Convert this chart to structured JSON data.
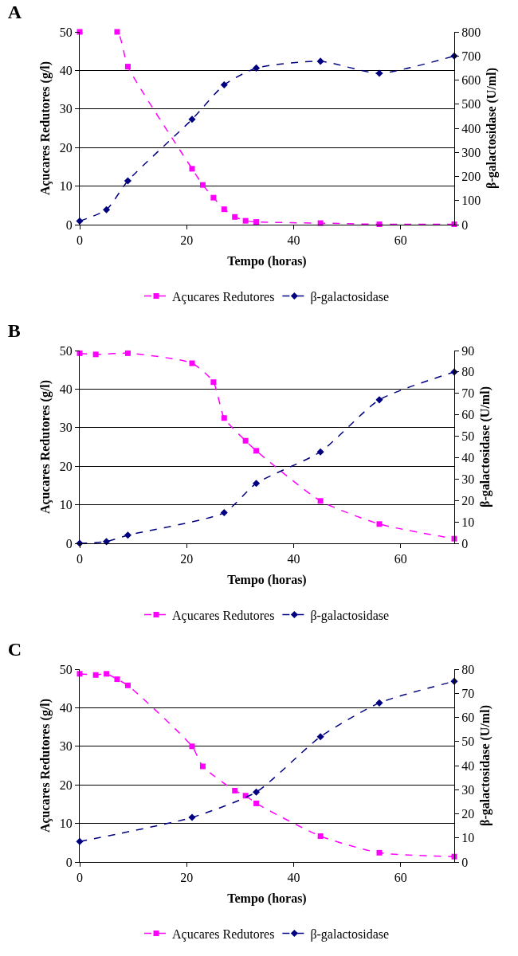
{
  "chart_data": [
    {
      "type": "line",
      "title": "A",
      "xlabel": "Tempo (horas)",
      "ylabel": "Açucares Redutores (g/l)",
      "y2label": "β-galactosidase (U/ml)",
      "xlim": [
        0,
        70
      ],
      "xticks": [
        0,
        20,
        40,
        60
      ],
      "ylim": [
        0,
        50
      ],
      "yticks": [
        0,
        10,
        20,
        30,
        40,
        50
      ],
      "y2lim": [
        0,
        800
      ],
      "y2ticks": [
        0,
        100,
        200,
        300,
        400,
        500,
        600,
        700,
        800
      ],
      "grid": "y",
      "legend": "bottom",
      "line_style": "dashed",
      "series": [
        {
          "name": "Açucares Redutores",
          "color": "#ff00ff",
          "marker": "square",
          "x": [
            0,
            7,
            9,
            21,
            23,
            25,
            27,
            29,
            31,
            33,
            45,
            56,
            70
          ],
          "values": [
            50,
            50,
            41,
            14.5,
            10.3,
            7,
            4,
            2,
            1,
            0.7,
            0.4,
            0.1,
            0.1
          ]
        },
        {
          "name": "β-galactosidase",
          "color": "#000080",
          "marker": "diamond",
          "axis": "y2",
          "x": [
            0,
            5,
            9,
            21,
            27,
            33,
            45,
            56,
            70
          ],
          "values": [
            15,
            62,
            182,
            437,
            580,
            650,
            678,
            628,
            700
          ]
        }
      ]
    },
    {
      "type": "line",
      "title": "B",
      "xlabel": "Tempo (horas)",
      "ylabel": "Açucares Redutores (g/l)",
      "y2label": "β-galactosidase (U/ml)",
      "xlim": [
        0,
        70
      ],
      "xticks": [
        0,
        20,
        40,
        60
      ],
      "ylim": [
        0,
        50
      ],
      "yticks": [
        0,
        10,
        20,
        30,
        40,
        50
      ],
      "y2lim": [
        0,
        90
      ],
      "y2ticks": [
        0,
        10,
        20,
        30,
        40,
        50,
        60,
        70,
        80,
        90
      ],
      "grid": "y",
      "legend": "bottom",
      "line_style": "dashed",
      "series": [
        {
          "name": "Açucares Redutores",
          "color": "#ff00ff",
          "marker": "square",
          "x": [
            0,
            3,
            9,
            21,
            25,
            27,
            31,
            33,
            45,
            56,
            70
          ],
          "values": [
            49.3,
            49,
            49.3,
            46.7,
            41.8,
            32.5,
            26.6,
            24,
            11,
            5,
            1.2
          ]
        },
        {
          "name": "β-galactosidase",
          "color": "#000080",
          "marker": "diamond",
          "axis": "y2",
          "x": [
            0,
            5,
            9,
            27,
            33,
            45,
            56,
            70
          ],
          "values": [
            0,
            0.8,
            3.8,
            14.3,
            28,
            42.7,
            67,
            80
          ]
        }
      ]
    },
    {
      "type": "line",
      "title": "C",
      "xlabel": "Tempo (horas)",
      "ylabel": "Açucares Redutores (g/l)",
      "y2label": "β-galactosidase (U/ml)",
      "xlim": [
        0,
        70
      ],
      "xticks": [
        0,
        20,
        40,
        60
      ],
      "ylim": [
        0,
        50
      ],
      "yticks": [
        0,
        10,
        20,
        30,
        40,
        50
      ],
      "y2lim": [
        0,
        80
      ],
      "y2ticks": [
        0,
        10,
        20,
        30,
        40,
        50,
        60,
        70,
        80
      ],
      "grid": "y",
      "legend": "bottom",
      "line_style": "dashed",
      "series": [
        {
          "name": "Açucares Redutores",
          "color": "#ff00ff",
          "marker": "square",
          "x": [
            0,
            3,
            5,
            7,
            9,
            21,
            23,
            29,
            31,
            33,
            45,
            56,
            70
          ],
          "values": [
            48.8,
            48.5,
            48.8,
            47.4,
            45.8,
            30,
            24.8,
            18.5,
            17.2,
            15.2,
            6.7,
            2.4,
            1.4
          ]
        },
        {
          "name": "β-galactosidase",
          "color": "#000080",
          "marker": "diamond",
          "axis": "y2",
          "x": [
            0,
            21,
            33,
            45,
            56,
            70
          ],
          "values": [
            8.5,
            18.5,
            29,
            52,
            66,
            75
          ]
        }
      ]
    }
  ]
}
